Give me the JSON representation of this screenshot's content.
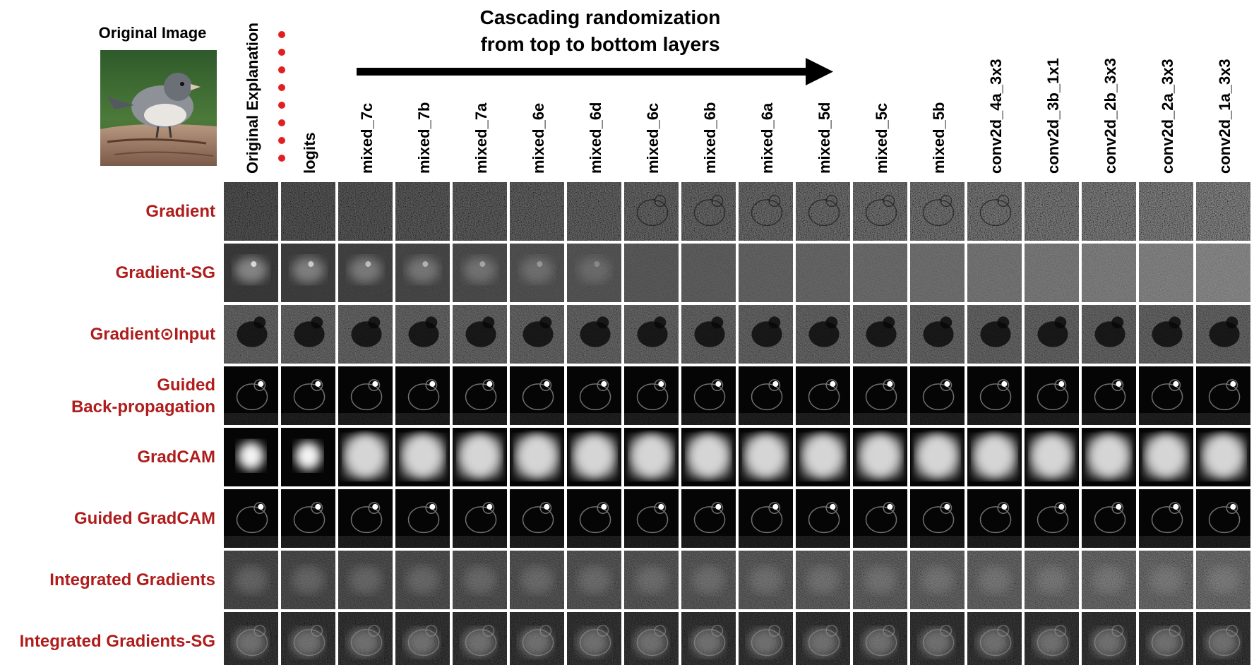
{
  "original_image_title": "Original Image",
  "original_photo_icon": "bird-photo",
  "arrow_title": [
    "Cascading randomization",
    "from top to bottom layers"
  ],
  "columns": [
    "Original Explanation",
    "logits",
    "mixed_7c",
    "mixed_7b",
    "mixed_7a",
    "mixed_6e",
    "mixed_6d",
    "mixed_6c",
    "mixed_6b",
    "mixed_6a",
    "mixed_5d",
    "mixed_5c",
    "mixed_5b",
    "conv2d_4a_3x3",
    "conv2d_3b_1x1",
    "conv2d_2b_3x3",
    "conv2d_2a_3x3",
    "conv2d_1a_3x3"
  ],
  "rows": [
    {
      "label": [
        "Gradient"
      ],
      "style": "noise"
    },
    {
      "label": [
        "Gradient-SG"
      ],
      "style": "smooth"
    },
    {
      "label": [
        "Gradient⊙Input"
      ],
      "style": "input"
    },
    {
      "label": [
        "Guided",
        "Back-propagation"
      ],
      "style": "guided"
    },
    {
      "label": [
        "GradCAM"
      ],
      "style": "cam"
    },
    {
      "label": [
        "Guided GradCAM"
      ],
      "style": "guided"
    },
    {
      "label": [
        "Integrated Gradients"
      ],
      "style": "ig"
    },
    {
      "label": [
        "Integrated Gradients-SG"
      ],
      "style": "igsg"
    }
  ],
  "colors": {
    "row_label": "#b01c1c",
    "dots": "#e02020",
    "arrow": "#000000"
  }
}
